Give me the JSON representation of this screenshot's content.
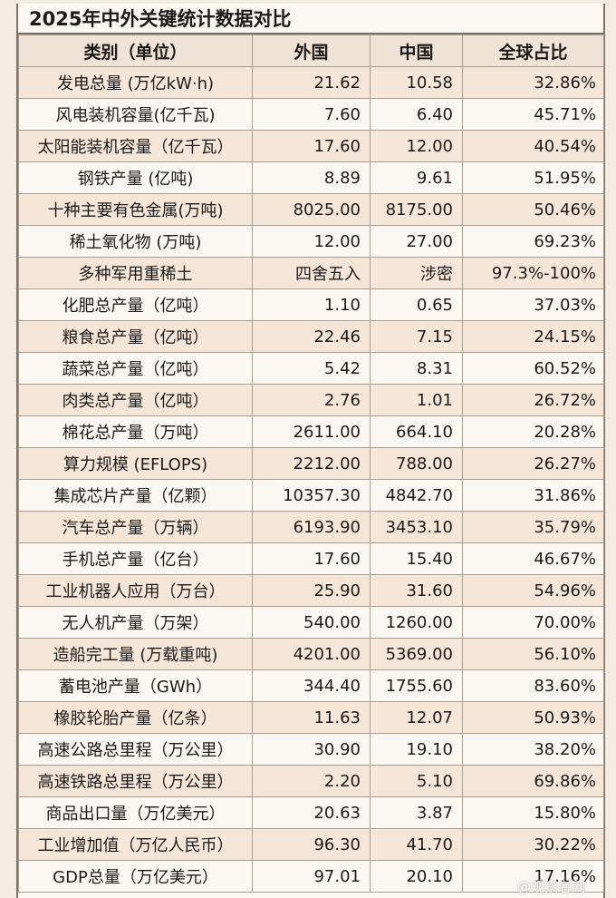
{
  "title": "2025年中外关键统计数据对比",
  "headers": {
    "category": "类别（单位）",
    "foreign": "外国",
    "china": "中国",
    "share": "全球占比"
  },
  "rows": [
    {
      "category": "发电总量 (万亿kW·h)",
      "foreign": "21.62",
      "china": "10.58",
      "share": "32.86%"
    },
    {
      "category": "风电装机容量(亿千瓦)",
      "foreign": "7.60",
      "china": "6.40",
      "share": "45.71%"
    },
    {
      "category": "太阳能装机容量（亿千瓦）",
      "foreign": "17.60",
      "china": "12.00",
      "share": "40.54%"
    },
    {
      "category": "钢铁产量 (亿吨)",
      "foreign": "8.89",
      "china": "9.61",
      "share": "51.95%"
    },
    {
      "category": "十种主要有色金属(万吨)",
      "foreign": "8025.00",
      "china": "8175.00",
      "share": "50.46%"
    },
    {
      "category": "稀土氧化物 (万吨)",
      "foreign": "12.00",
      "china": "27.00",
      "share": "69.23%"
    },
    {
      "category": "多种军用重稀土",
      "foreign": "四舍五入",
      "china": "涉密",
      "share": "97.3%-100%"
    },
    {
      "category": "化肥总产量（亿吨）",
      "foreign": "1.10",
      "china": "0.65",
      "share": "37.03%"
    },
    {
      "category": "粮食总产量（亿吨）",
      "foreign": "22.46",
      "china": "7.15",
      "share": "24.15%"
    },
    {
      "category": "蔬菜总产量（亿吨）",
      "foreign": "5.42",
      "china": "8.31",
      "share": "60.52%"
    },
    {
      "category": "肉类总产量（亿吨）",
      "foreign": "2.76",
      "china": "1.01",
      "share": "26.72%"
    },
    {
      "category": "棉花总产量（万吨）",
      "foreign": "2611.00",
      "china": "664.10",
      "share": "20.28%"
    },
    {
      "category": "算力规模 (EFLOPS)",
      "foreign": "2212.00",
      "china": "788.00",
      "share": "26.27%"
    },
    {
      "category": "集成芯片产量（亿颗）",
      "foreign": "10357.30",
      "china": "4842.70",
      "share": "31.86%"
    },
    {
      "category": "汽车总产量（万辆）",
      "foreign": "6193.90",
      "china": "3453.10",
      "share": "35.79%"
    },
    {
      "category": "手机总产量（亿台）",
      "foreign": "17.60",
      "china": "15.40",
      "share": "46.67%"
    },
    {
      "category": "工业机器人应用（万台）",
      "foreign": "25.90",
      "china": "31.60",
      "share": "54.96%"
    },
    {
      "category": "无人机产量（万架）",
      "foreign": "540.00",
      "china": "1260.00",
      "share": "70.00%"
    },
    {
      "category": "造船完工量 (万载重吨)",
      "foreign": "4201.00",
      "china": "5369.00",
      "share": "56.10%"
    },
    {
      "category": "蓄电池产量（GWh）",
      "foreign": "344.40",
      "china": "1755.60",
      "share": "83.60%"
    },
    {
      "category": "橡胶轮胎产量（亿条）",
      "foreign": "11.63",
      "china": "12.07",
      "share": "50.93%"
    },
    {
      "category": "高速公路总里程（万公里）",
      "foreign": "30.90",
      "china": "19.10",
      "share": "38.20%"
    },
    {
      "category": "高速铁路总里程（万公里）",
      "foreign": "2.20",
      "china": "5.10",
      "share": "69.86%"
    },
    {
      "category": "商品出口量（万亿美元）",
      "foreign": "20.63",
      "china": "3.87",
      "share": "15.80%"
    },
    {
      "category": "工业增加值（万亿人民币）",
      "foreign": "96.30",
      "china": "41.70",
      "share": "30.22%"
    },
    {
      "category": "GDP总量（万亿美元）",
      "foreign": "97.01",
      "china": "20.10",
      "share": "17.16%"
    }
  ],
  "watermark": "@观察者网"
}
